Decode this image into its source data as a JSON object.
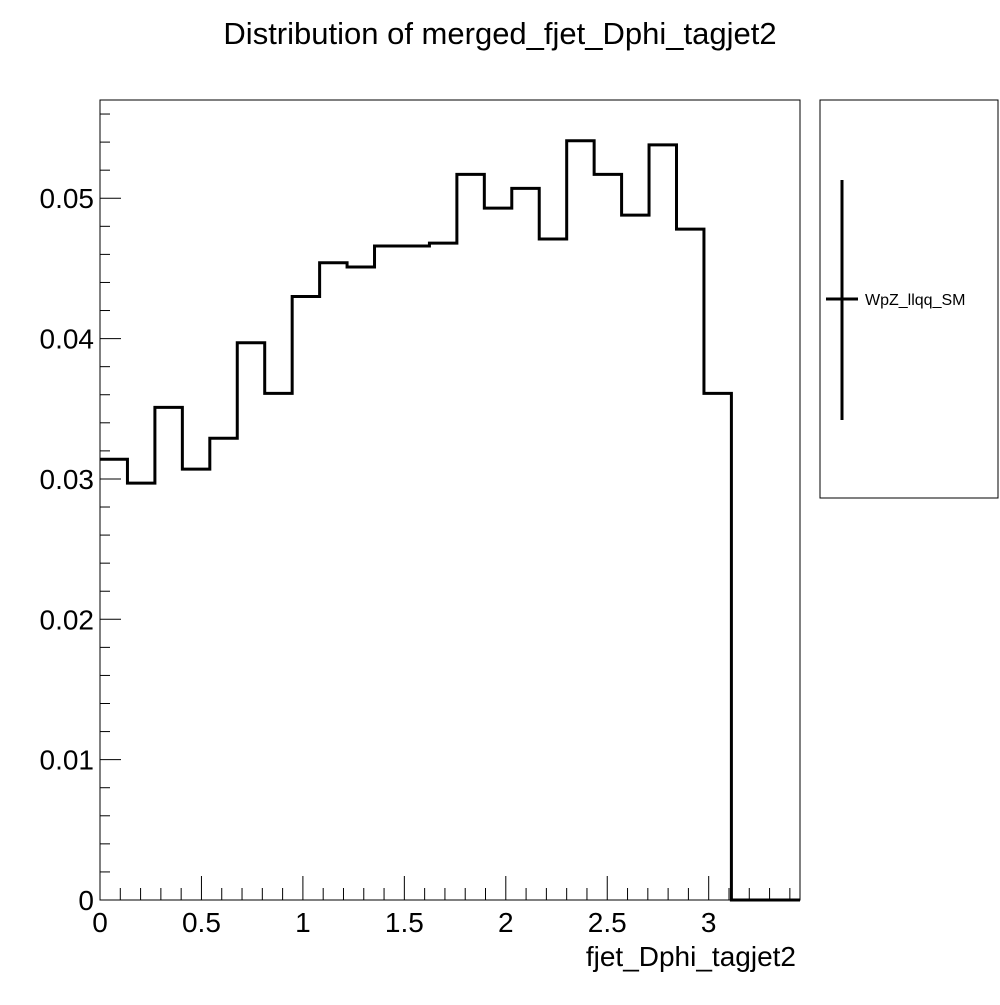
{
  "chart_data": {
    "type": "histogram",
    "title": "Distribution of merged_fjet_Dphi_tagjet2",
    "xlabel": "fjet_Dphi_tagjet2",
    "ylabel": "",
    "xlim": [
      0,
      3.45
    ],
    "ylim": [
      0,
      0.057
    ],
    "bin_width": 0.1353,
    "bin_edges_start": 0,
    "x_ticks": [
      "0",
      "0.5",
      "1",
      "1.5",
      "2",
      "2.5",
      "3"
    ],
    "x_tick_values": [
      0,
      0.5,
      1,
      1.5,
      2,
      2.5,
      3
    ],
    "y_ticks": [
      "0",
      "0.01",
      "0.02",
      "0.03",
      "0.04",
      "0.05"
    ],
    "y_tick_values": [
      0,
      0.01,
      0.02,
      0.03,
      0.04,
      0.05
    ],
    "series": [
      {
        "name": "WpZ_llqq_SM",
        "color": "#000000",
        "values": [
          0.0314,
          0.0297,
          0.0351,
          0.0307,
          0.0329,
          0.0397,
          0.0361,
          0.043,
          0.0454,
          0.0451,
          0.0466,
          0.0466,
          0.0468,
          0.0517,
          0.0493,
          0.0507,
          0.0471,
          0.0541,
          0.0517,
          0.0488,
          0.0538,
          0.0478,
          0.0361,
          0.0,
          0.0,
          0.0
        ]
      }
    ],
    "legend": {
      "position": "right",
      "entries": [
        "WpZ_llqq_SM"
      ]
    },
    "grid": false
  }
}
